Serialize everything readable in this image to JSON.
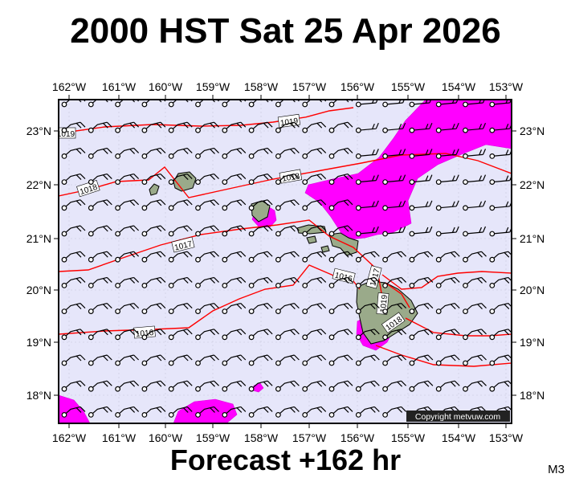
{
  "title": "2000 HST Sat 25 Apr 2026",
  "footer": "Forecast +162 hr",
  "model_code": "M3",
  "copyright": "Copyright metvuw.com",
  "map": {
    "lon_labels": [
      "162°W",
      "161°W",
      "160°W",
      "159°W",
      "158°W",
      "157°W",
      "156°W",
      "155°W",
      "154°W",
      "153°W"
    ],
    "lat_labels": [
      "23°N",
      "22°N",
      "21°N",
      "20°N",
      "19°N",
      "18°N"
    ],
    "isobar_labels": [
      "1019",
      "1019",
      "1018",
      "1018",
      "1017",
      "1016",
      "1017",
      "1019",
      "1018",
      "1016"
    ],
    "colors": {
      "background": "#e6e6fa",
      "isobar": "#ff0000",
      "rain": "#ff00ff",
      "land": "#9aaa8a",
      "grid": "#c8c8dc"
    }
  }
}
